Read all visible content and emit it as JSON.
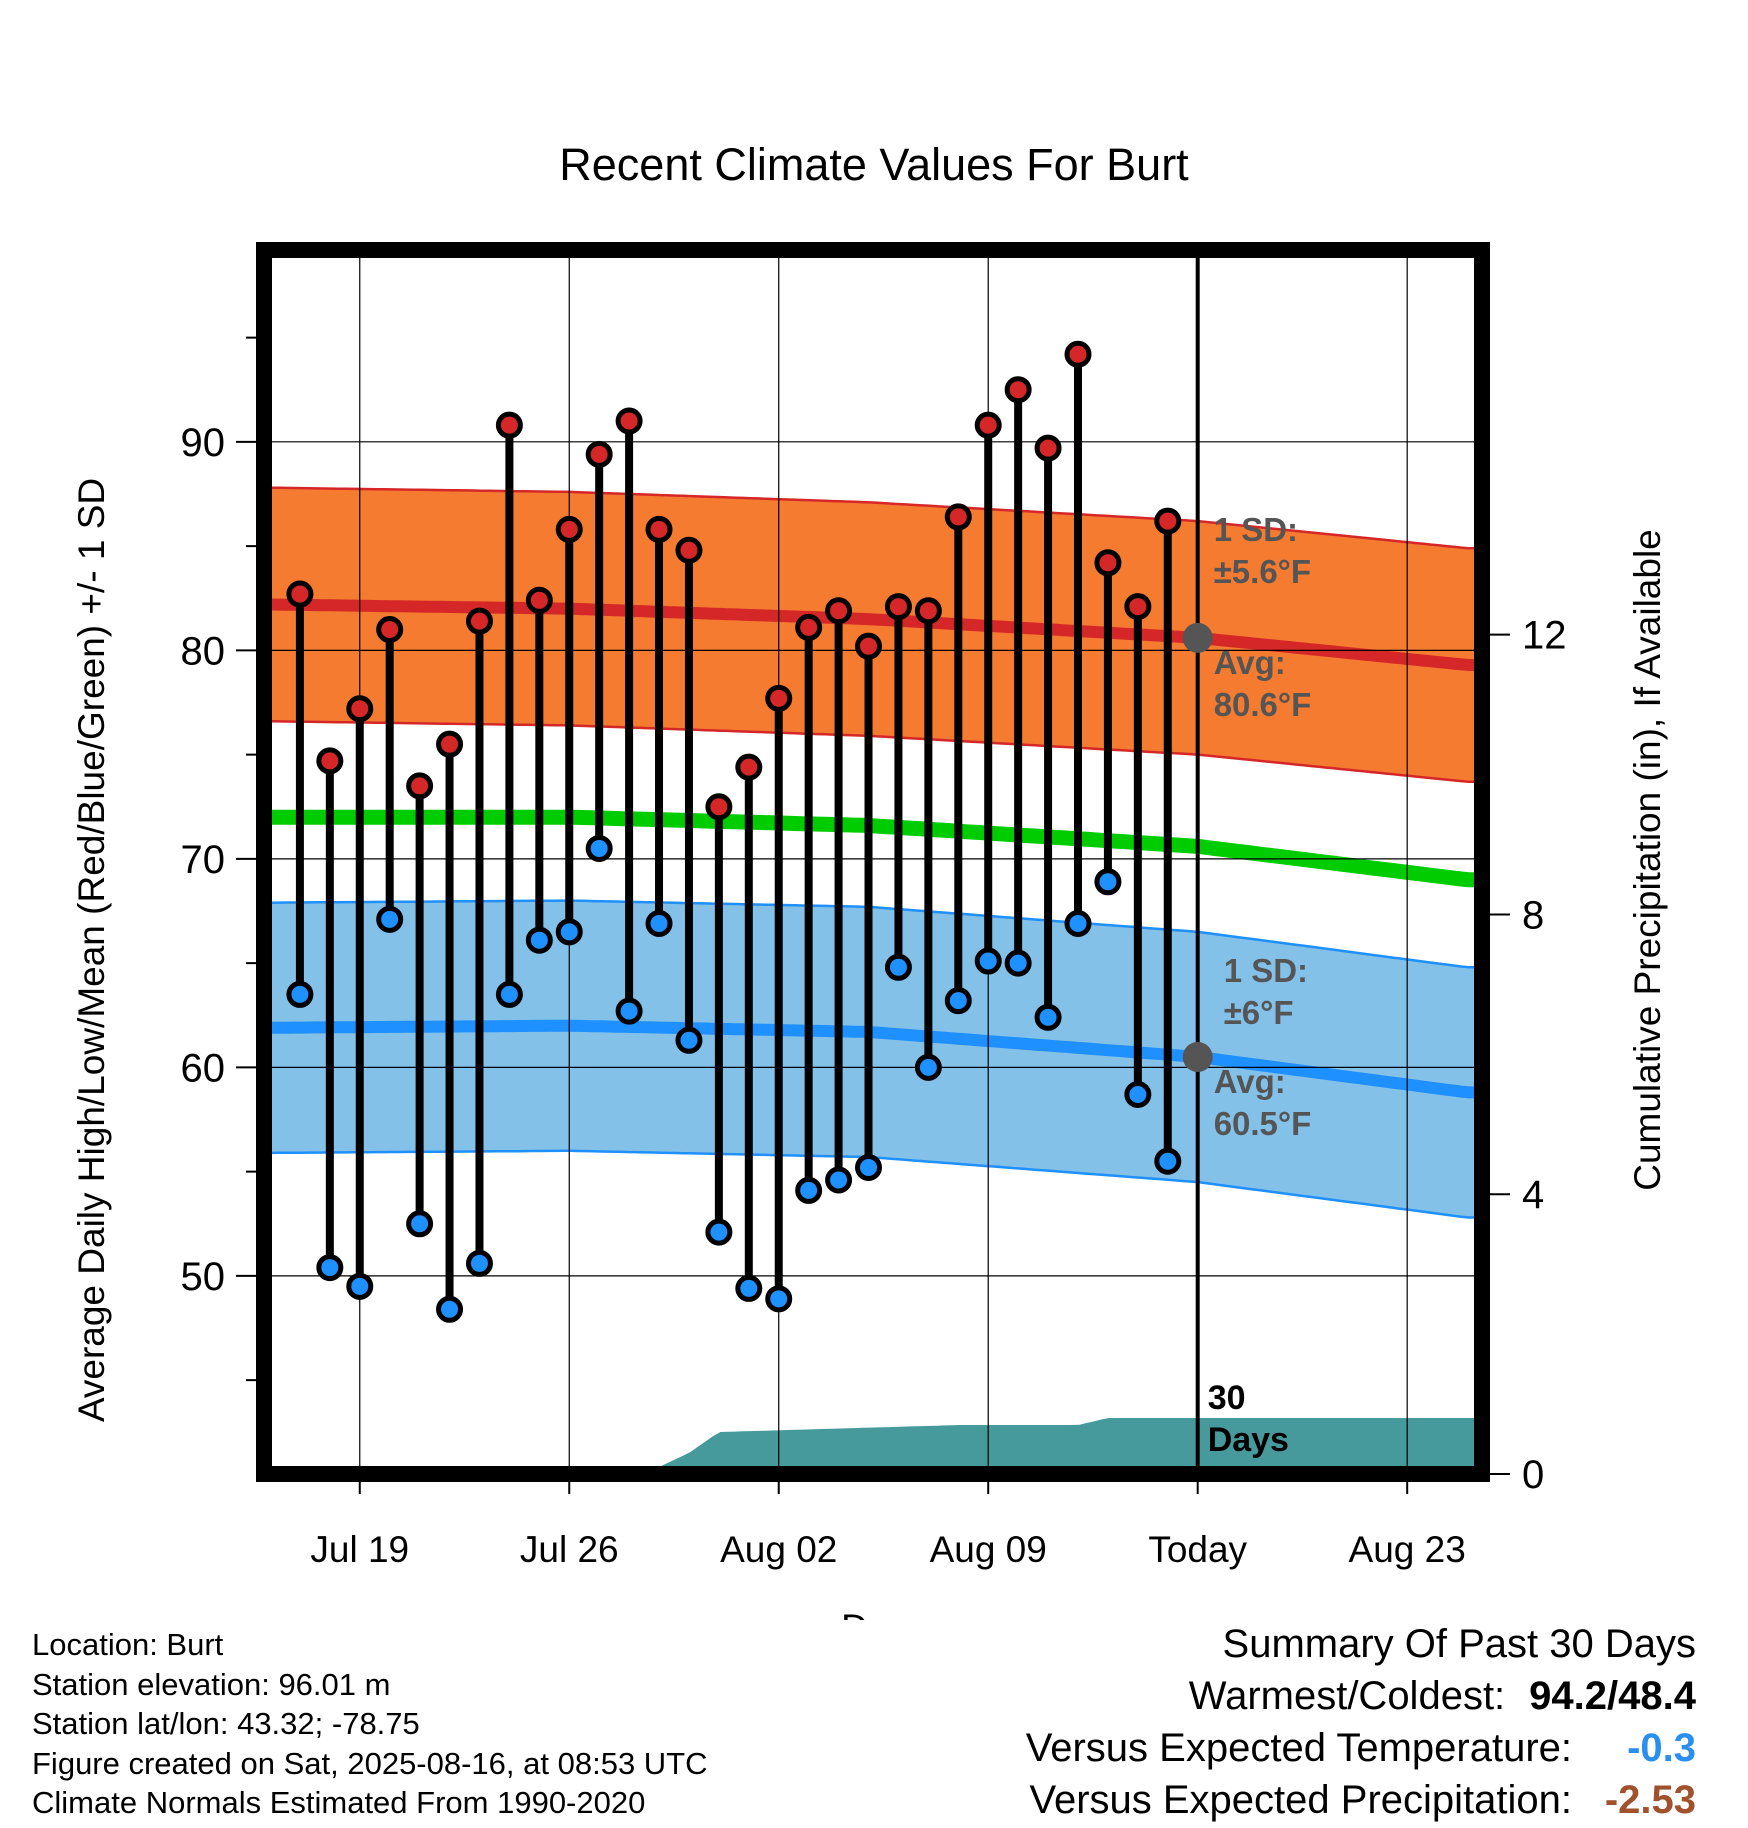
{
  "chart_data": {
    "type": "line",
    "title": "Recent Climate Values For Burt",
    "xlabel": "Day",
    "ylabel": "Average Daily High/Low/Mean (Red/Blue/Green) +/- 1 SD",
    "ylabel_right": "Cumulative Precipitation (in), If Available",
    "x_ticks": [
      {
        "day": 3,
        "label": "Jul 19"
      },
      {
        "day": 10,
        "label": "Jul 26"
      },
      {
        "day": 17,
        "label": "Aug 02"
      },
      {
        "day": 24,
        "label": "Aug 09"
      },
      {
        "day": 31,
        "label": "Today"
      },
      {
        "day": 38,
        "label": "Aug 23"
      }
    ],
    "xlim": [
      -0.2,
      40.5
    ],
    "ylim": [
      40.5,
      99.2
    ],
    "y_ticks": [
      50,
      60,
      70,
      80,
      90
    ],
    "y2lim": [
      0,
      17.5
    ],
    "y2_ticks": [
      0,
      4,
      8,
      12
    ],
    "today_day": 31,
    "days_label_line1": "30",
    "days_label_line2": "Days",
    "grid": true,
    "highs": [
      82.7,
      74.7,
      77.2,
      81.0,
      73.5,
      75.5,
      81.4,
      90.8,
      82.4,
      85.8,
      89.4,
      91.0,
      85.8,
      84.8,
      72.5,
      74.4,
      77.7,
      81.1,
      81.9,
      80.2,
      82.1,
      81.9,
      86.4,
      90.8,
      92.5,
      89.7,
      94.2,
      84.2,
      82.1,
      86.2
    ],
    "lows": [
      63.5,
      50.4,
      49.5,
      67.1,
      52.5,
      48.4,
      50.6,
      63.5,
      66.1,
      66.5,
      70.5,
      62.7,
      66.9,
      61.3,
      52.1,
      49.4,
      48.9,
      54.1,
      54.6,
      55.2,
      64.8,
      60.0,
      63.2,
      65.1,
      65.0,
      62.4,
      66.9,
      68.9,
      58.7,
      55.5
    ],
    "normal_high": {
      "days": [
        0,
        10,
        20,
        31,
        40
      ],
      "values": [
        82.2,
        82.0,
        81.5,
        80.6,
        79.3
      ]
    },
    "normal_high_sd": 5.6,
    "normal_low": {
      "days": [
        0,
        10,
        20,
        31,
        40
      ],
      "values": [
        61.9,
        62.0,
        61.7,
        60.5,
        58.8
      ]
    },
    "normal_low_sd": 6.0,
    "normal_mean": {
      "days": [
        0,
        10,
        20,
        31,
        40
      ],
      "values": [
        72.0,
        72.0,
        71.6,
        70.6,
        69.0
      ]
    },
    "precip_cumulative": {
      "days": [
        0,
        13,
        14,
        15,
        23,
        27,
        28,
        40
      ],
      "values": [
        0.0,
        0.1,
        0.3,
        0.6,
        0.7,
        0.7,
        0.8,
        0.8
      ]
    },
    "annotations": [
      {
        "line1": "1 SD:",
        "line2": "±5.6°F",
        "series": "high_sd"
      },
      {
        "line1": "Avg:",
        "line2": "80.6°F",
        "series": "high_avg"
      },
      {
        "line1": "1 SD:",
        "line2": "±6°F",
        "series": "low_sd"
      },
      {
        "line1": "Avg:",
        "line2": "60.5°F",
        "series": "low_avg"
      }
    ],
    "colors": {
      "high_band": "#f47b30",
      "high_line": "#d62728",
      "low_band": "#84c1e8",
      "low_line": "#1e90ff",
      "mean_line": "#00cc00",
      "precip": "#469a9c",
      "high_dot": "#d62728",
      "low_dot": "#1e90ff",
      "avg_marker": "#555555"
    }
  },
  "footer": {
    "location": "Location: Burt",
    "elevation": "Station elevation: 96.01 m",
    "latlon": "Station lat/lon: 43.32; -78.75",
    "created": "Figure created on Sat, 2025-08-16, at 08:53 UTC",
    "normals": "Climate Normals Estimated From 1990-2020"
  },
  "summary": {
    "title": "Summary Of Past 30 Days",
    "warm_cold_label": "Warmest/Coldest:",
    "warm_cold_value": "94.2/48.4",
    "temp_label": "Versus Expected Temperature:",
    "temp_value": "-0.3",
    "temp_color": "#2b8ff0",
    "precip_label": "Versus Expected Precipitation:",
    "precip_value": "-2.53",
    "precip_color": "#a0522d"
  }
}
